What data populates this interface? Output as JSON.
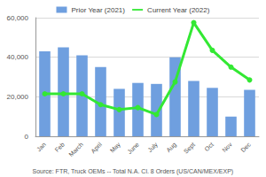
{
  "chart_data": {
    "type": "bar",
    "categories": [
      "Jan",
      "Feb",
      "March",
      "April",
      "May",
      "June",
      "July",
      "Aug",
      "Sept",
      "Oct",
      "Nov",
      "Dec"
    ],
    "series": [
      {
        "name": "Prior Year (2021)",
        "type": "bar",
        "color": "#6f9fdf",
        "values": [
          43000,
          45000,
          41000,
          35000,
          24000,
          27000,
          26500,
          40000,
          28000,
          24500,
          10000,
          23500
        ]
      },
      {
        "name": "Current Year (2022)",
        "type": "line",
        "color": "#33e833",
        "marker": "circle",
        "values": [
          21500,
          21500,
          21500,
          16000,
          13500,
          14500,
          11000,
          27500,
          57500,
          43500,
          35000,
          28500
        ]
      }
    ],
    "ylim": [
      0,
      60000
    ],
    "yticks": [
      0,
      {
        "value": 20000,
        "label": "20,000"
      },
      {
        "value": 40000,
        "label": "40,000"
      },
      {
        "value": 60000,
        "label": "60,000"
      }
    ],
    "grid": true,
    "legend": "top",
    "annotation": "Source: FTR, Truck OEMs -- Total N.A. Cl. 8 Orders (US/CAN/MEX/EXP)"
  }
}
